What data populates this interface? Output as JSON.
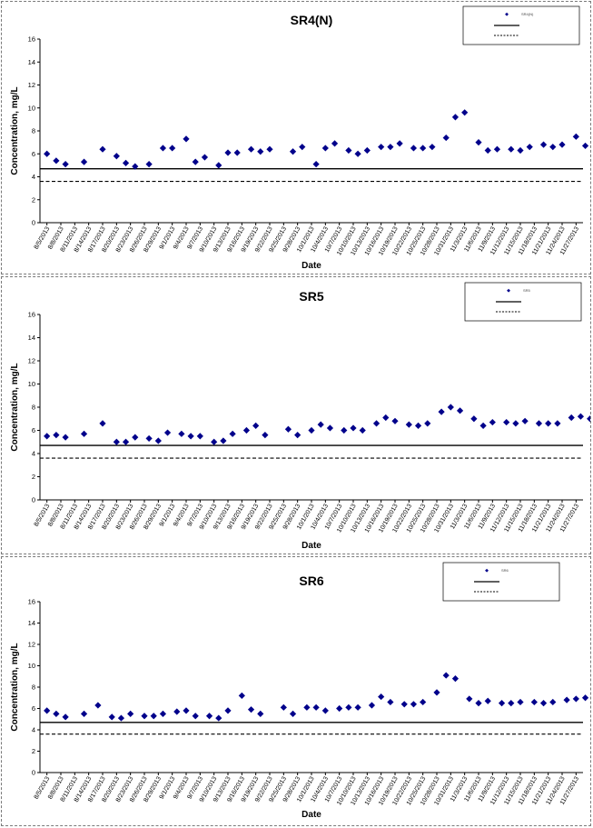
{
  "chart_data": [
    {
      "type": "scatter",
      "title": "SR4(N)",
      "xlabel": "Date",
      "ylabel": "Concentration, mg/L",
      "ylim": [
        0,
        16
      ],
      "yticks": [
        "0",
        "2",
        "4",
        "6",
        "8",
        "10",
        "12",
        "14",
        "16"
      ],
      "grid": false,
      "legend_placement": "top-right",
      "legend": [
        "SR4(N)",
        "",
        ""
      ],
      "x_tick_labels": [
        "8/5/2013",
        "8/8/2013",
        "8/11/2013",
        "8/14/2013",
        "8/17/2013",
        "8/20/2013",
        "8/23/2013",
        "8/26/2013",
        "8/29/2013",
        "9/1/2013",
        "9/4/2013",
        "9/7/2013",
        "9/10/2013",
        "9/13/2013",
        "9/16/2013",
        "9/19/2013",
        "9/22/2013",
        "9/25/2013",
        "9/28/2013",
        "10/1/2013",
        "10/4/2013",
        "10/7/2013",
        "10/10/2013",
        "10/13/2013",
        "10/16/2013",
        "10/19/2013",
        "10/22/2013",
        "10/25/2013",
        "10/28/2013",
        "10/31/2013",
        "11/3/2013",
        "11/6/2013",
        "11/9/2013",
        "11/12/2013",
        "11/15/2013",
        "11/18/2013",
        "11/21/2013",
        "11/24/2013",
        "11/27/2013"
      ],
      "solid_line": 4.7,
      "dashed_line": 3.6,
      "series": [
        {
          "marker": "diamond",
          "color": "#00008B",
          "x": [
            "8/5/2013",
            "8/7/2013",
            "8/9/2013",
            "8/13/2013",
            "8/17/2013",
            "8/20/2013",
            "8/22/2013",
            "8/24/2013",
            "8/27/2013",
            "8/30/2013",
            "9/1/2013",
            "9/4/2013",
            "9/6/2013",
            "9/8/2013",
            "9/11/2013",
            "9/13/2013",
            "9/15/2013",
            "9/18/2013",
            "9/20/2013",
            "9/22/2013",
            "9/27/2013",
            "9/29/2013",
            "10/2/2013",
            "10/4/2013",
            "10/6/2013",
            "10/9/2013",
            "10/11/2013",
            "10/13/2013",
            "10/16/2013",
            "10/18/2013",
            "10/20/2013",
            "10/23/2013",
            "10/25/2013",
            "10/27/2013",
            "10/30/2013",
            "11/1/2013",
            "11/3/2013",
            "11/6/2013",
            "11/8/2013",
            "11/10/2013",
            "11/13/2013",
            "11/15/2013",
            "11/17/2013",
            "11/20/2013",
            "11/22/2013",
            "11/24/2013",
            "11/27/2013",
            "11/29/2013",
            "12/1/2013"
          ],
          "y": [
            6.0,
            5.4,
            5.1,
            5.3,
            6.4,
            5.8,
            5.2,
            4.9,
            5.1,
            6.5,
            6.5,
            7.3,
            5.3,
            5.7,
            5.0,
            6.1,
            6.1,
            6.4,
            6.2,
            6.4,
            6.2,
            6.6,
            5.1,
            6.5,
            6.9,
            6.3,
            6.0,
            6.3,
            6.6,
            6.6,
            6.9,
            6.5,
            6.5,
            6.6,
            7.4,
            9.2,
            9.6,
            7.0,
            6.3,
            6.4,
            6.4,
            6.3,
            6.6,
            6.8,
            6.6,
            6.8,
            7.5,
            6.7,
            7.5
          ]
        }
      ]
    },
    {
      "type": "scatter",
      "title": "SR5",
      "xlabel": "Date",
      "ylabel": "Concentration, mg/L",
      "ylim": [
        0,
        16
      ],
      "yticks": [
        "0",
        "2",
        "4",
        "6",
        "8",
        "10",
        "12",
        "14",
        "16"
      ],
      "grid": false,
      "legend_placement": "top-right",
      "legend": [
        "SR5",
        "",
        ""
      ],
      "x_tick_labels": [
        "8/5/2013",
        "8/8/2013",
        "8/11/2013",
        "8/14/2013",
        "8/17/2013",
        "8/20/2013",
        "8/23/2013",
        "8/26/2013",
        "8/29/2013",
        "9/1/2013",
        "9/4/2013",
        "9/7/2013",
        "9/10/2013",
        "9/13/2013",
        "9/16/2013",
        "9/19/2013",
        "9/22/2013",
        "9/25/2013",
        "9/28/2013",
        "10/1/2013",
        "10/4/2013",
        "10/7/2013",
        "10/10/2013",
        "10/13/2013",
        "10/16/2013",
        "10/19/2013",
        "10/22/2013",
        "10/25/2013",
        "10/28/2013",
        "10/31/2013",
        "11/3/2013",
        "11/6/2013",
        "11/9/2013",
        "11/12/2013",
        "11/15/2013",
        "11/18/2013",
        "11/21/2013",
        "11/24/2013",
        "11/27/2013"
      ],
      "solid_line": 4.7,
      "dashed_line": 3.6,
      "series": [
        {
          "marker": "diamond",
          "color": "#00008B",
          "x": [
            "8/5/2013",
            "8/7/2013",
            "8/9/2013",
            "8/13/2013",
            "8/17/2013",
            "8/20/2013",
            "8/22/2013",
            "8/24/2013",
            "8/27/2013",
            "8/29/2013",
            "8/31/2013",
            "9/3/2013",
            "9/5/2013",
            "9/7/2013",
            "9/10/2013",
            "9/12/2013",
            "9/14/2013",
            "9/17/2013",
            "9/19/2013",
            "9/21/2013",
            "9/26/2013",
            "9/28/2013",
            "10/1/2013",
            "10/3/2013",
            "10/5/2013",
            "10/8/2013",
            "10/10/2013",
            "10/12/2013",
            "10/15/2013",
            "10/17/2013",
            "10/19/2013",
            "10/22/2013",
            "10/24/2013",
            "10/26/2013",
            "10/29/2013",
            "10/31/2013",
            "11/2/2013",
            "11/5/2013",
            "11/7/2013",
            "11/9/2013",
            "11/12/2013",
            "11/14/2013",
            "11/16/2013",
            "11/19/2013",
            "11/21/2013",
            "11/23/2013",
            "11/26/2013",
            "11/28/2013",
            "11/30/2013"
          ],
          "y": [
            5.5,
            5.6,
            5.4,
            5.7,
            6.6,
            5.0,
            5.0,
            5.4,
            5.3,
            5.1,
            5.8,
            5.7,
            5.5,
            5.5,
            5.0,
            5.1,
            5.7,
            6.0,
            6.4,
            5.6,
            6.1,
            5.6,
            6.0,
            6.5,
            6.2,
            6.0,
            6.2,
            6.0,
            6.6,
            7.1,
            6.8,
            6.5,
            6.4,
            6.6,
            7.6,
            8.0,
            7.7,
            7.0,
            6.4,
            6.7,
            6.7,
            6.6,
            6.8,
            6.6,
            6.6,
            6.6,
            7.1,
            7.2,
            7.0
          ]
        }
      ]
    },
    {
      "type": "scatter",
      "title": "SR6",
      "xlabel": "Date",
      "ylabel": "Concentration, mg/L",
      "ylim": [
        0,
        16
      ],
      "yticks": [
        "0",
        "2",
        "4",
        "6",
        "8",
        "10",
        "12",
        "14",
        "16"
      ],
      "grid": false,
      "legend_placement": "top-right",
      "legend": [
        "SR6",
        "",
        ""
      ],
      "x_tick_labels": [
        "8/5/2013",
        "8/8/2013",
        "8/11/2013",
        "8/14/2013",
        "8/17/2013",
        "8/20/2013",
        "8/23/2013",
        "8/26/2013",
        "8/29/2013",
        "9/1/2013",
        "9/4/2013",
        "9/7/2013",
        "9/10/2013",
        "9/13/2013",
        "9/16/2013",
        "9/19/2013",
        "9/22/2013",
        "9/25/2013",
        "9/28/2013",
        "10/1/2013",
        "10/4/2013",
        "10/7/2013",
        "10/10/2013",
        "10/13/2013",
        "10/16/2013",
        "10/19/2013",
        "10/22/2013",
        "10/25/2013",
        "10/28/2013",
        "10/31/2013",
        "11/3/2013",
        "11/6/2013",
        "11/9/2013",
        "11/12/2013",
        "11/15/2013",
        "11/18/2013",
        "11/21/2013",
        "11/24/2013",
        "11/27/2013"
      ],
      "solid_line": 4.7,
      "dashed_line": 3.6,
      "series": [
        {
          "marker": "diamond",
          "color": "#00008B",
          "x": [
            "8/5/2013",
            "8/7/2013",
            "8/9/2013",
            "8/13/2013",
            "8/16/2013",
            "8/19/2013",
            "8/21/2013",
            "8/23/2013",
            "8/26/2013",
            "8/28/2013",
            "8/30/2013",
            "9/2/2013",
            "9/4/2013",
            "9/6/2013",
            "9/9/2013",
            "9/11/2013",
            "9/13/2013",
            "9/16/2013",
            "9/18/2013",
            "9/20/2013",
            "9/25/2013",
            "9/27/2013",
            "9/30/2013",
            "10/2/2013",
            "10/4/2013",
            "10/7/2013",
            "10/9/2013",
            "10/11/2013",
            "10/14/2013",
            "10/16/2013",
            "10/18/2013",
            "10/21/2013",
            "10/23/2013",
            "10/25/2013",
            "10/28/2013",
            "10/30/2013",
            "11/1/2013",
            "11/4/2013",
            "11/6/2013",
            "11/8/2013",
            "11/11/2013",
            "11/13/2013",
            "11/15/2013",
            "11/18/2013",
            "11/20/2013",
            "11/22/2013",
            "11/25/2013",
            "11/27/2013",
            "11/29/2013"
          ],
          "y": [
            5.8,
            5.5,
            5.2,
            5.5,
            6.3,
            5.2,
            5.1,
            5.5,
            5.3,
            5.3,
            5.5,
            5.7,
            5.8,
            5.3,
            5.3,
            5.1,
            5.8,
            7.2,
            5.9,
            5.5,
            6.1,
            5.5,
            6.1,
            6.1,
            5.8,
            6.0,
            6.1,
            6.1,
            6.3,
            7.1,
            6.6,
            6.4,
            6.4,
            6.6,
            7.5,
            9.1,
            8.8,
            6.9,
            6.5,
            6.7,
            6.5,
            6.5,
            6.6,
            6.6,
            6.5,
            6.6,
            6.8,
            6.9,
            7.0
          ]
        }
      ]
    }
  ]
}
